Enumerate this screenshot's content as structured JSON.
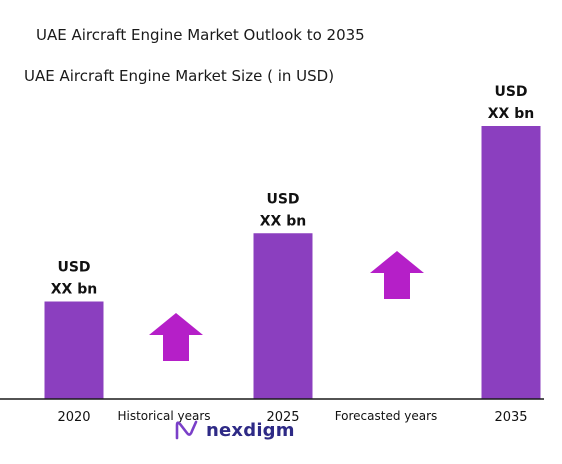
{
  "title": "UAE Aircraft Engine Market Outlook to 2035",
  "subtitle": "UAE Aircraft Engine Market Size ( in USD)",
  "brand": "nexdigm",
  "colors": {
    "bar": "#8b3fbf",
    "arrow": "#b51fc8",
    "axis": "#1a1a1a",
    "brand": "#2e2a86"
  },
  "chart_data": {
    "type": "bar",
    "categories": [
      "2020",
      "2025",
      "2035"
    ],
    "values": [
      1,
      1.7,
      2.8
    ],
    "value_labels": [
      [
        "USD",
        "XX bn"
      ],
      [
        "USD",
        "XX bn"
      ],
      [
        "USD",
        "XX bn"
      ]
    ],
    "annotations": [
      {
        "text": "Historical years",
        "between": [
          "2020",
          "2025"
        ]
      },
      {
        "text": "Forecasted years",
        "between": [
          "2025",
          "2035"
        ]
      }
    ],
    "ylim": [
      0,
      2.8
    ]
  }
}
